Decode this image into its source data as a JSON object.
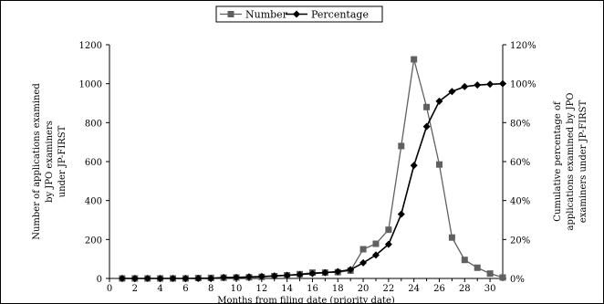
{
  "chart_data": {
    "type": "line",
    "title": "",
    "xlabel": "Months from filing date (priority date)",
    "ylabel_left": [
      "Number of applications examined",
      "by JPO examiners",
      "under JP-FIRST"
    ],
    "ylabel_right": [
      "Cumulative percentage of",
      "applications examined by JPO",
      "examiners under JP-FIRST"
    ],
    "x": [
      1,
      2,
      3,
      4,
      5,
      6,
      7,
      8,
      9,
      10,
      11,
      12,
      13,
      14,
      15,
      16,
      17,
      18,
      19,
      20,
      21,
      22,
      23,
      24,
      25,
      26,
      27,
      28,
      29,
      30,
      31
    ],
    "xlim": [
      0,
      31
    ],
    "x_ticks": [
      0,
      2,
      4,
      6,
      8,
      10,
      12,
      14,
      16,
      18,
      20,
      22,
      24,
      26,
      28,
      30
    ],
    "x_tick_labels": [
      "0",
      "2",
      "4",
      "6",
      "8",
      "10",
      "12",
      "14",
      "16",
      "18",
      "20",
      "22",
      "24",
      "26",
      "28",
      "30"
    ],
    "ylim_left": [
      0,
      1200
    ],
    "y_left_ticks": [
      0,
      200,
      400,
      600,
      800,
      1000,
      1200
    ],
    "y_left_tick_labels": [
      "0",
      "200",
      "400",
      "600",
      "800",
      "1000",
      "1200"
    ],
    "ylim_right": [
      0,
      1.2
    ],
    "y_right_ticks": [
      0,
      0.2,
      0.4,
      0.6,
      0.8,
      1.0,
      1.2
    ],
    "y_right_tick_labels": [
      "0%",
      "20%",
      "40%",
      "60%",
      "80%",
      "100%",
      "120%"
    ],
    "grid": false,
    "legend_position": "top-center",
    "series": [
      {
        "name": "Number",
        "axis": "left",
        "marker": "square",
        "color": "#606060",
        "values": [
          0,
          0,
          0,
          0,
          0,
          0,
          2,
          3,
          4,
          5,
          6,
          8,
          12,
          16,
          22,
          30,
          30,
          32,
          40,
          150,
          178,
          250,
          680,
          1125,
          880,
          585,
          210,
          95,
          55,
          25,
          5
        ]
      },
      {
        "name": "Percentage",
        "axis": "right",
        "marker": "diamond",
        "color": "#000000",
        "values": [
          0,
          0,
          0,
          0,
          0,
          0,
          0,
          0,
          0.005,
          0.005,
          0.008,
          0.01,
          0.013,
          0.016,
          0.02,
          0.025,
          0.03,
          0.035,
          0.045,
          0.08,
          0.12,
          0.175,
          0.33,
          0.58,
          0.78,
          0.91,
          0.96,
          0.985,
          0.993,
          0.997,
          1.0
        ]
      }
    ]
  }
}
